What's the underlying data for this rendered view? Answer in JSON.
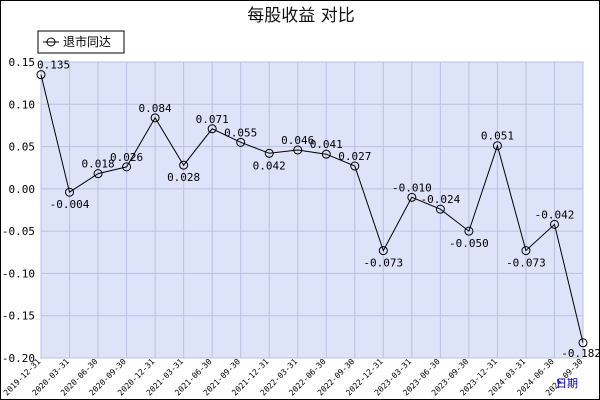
{
  "chart_data": {
    "type": "line",
    "title": "每股收益  对比",
    "xlabel": "日期",
    "ylabel": "",
    "ylim": [
      -0.2,
      0.15
    ],
    "yticks": [
      "0.15",
      "0.10",
      "0.05",
      "0.00",
      "-0.05",
      "-0.10",
      "-0.15",
      "-0.20"
    ],
    "ytick_values": [
      0.15,
      0.1,
      0.05,
      0.0,
      -0.05,
      -0.1,
      -0.15,
      -0.2
    ],
    "legend_position": "top-left",
    "grid": true,
    "categories": [
      "2019-12-31",
      "2020-03-31",
      "2020-06-30",
      "2020-09-30",
      "2020-12-31",
      "2021-03-31",
      "2021-06-30",
      "2021-09-30",
      "2021-12-31",
      "2022-03-31",
      "2022-06-30",
      "2022-09-30",
      "2022-12-31",
      "2023-03-31",
      "2023-06-30",
      "2023-09-30",
      "2023-12-31",
      "2024-03-31",
      "2024-06-30",
      "2024-09-30"
    ],
    "series": [
      {
        "name": "退市同达",
        "values": [
          0.135,
          -0.004,
          0.018,
          0.026,
          0.084,
          0.028,
          0.071,
          0.055,
          0.042,
          0.046,
          0.041,
          0.027,
          -0.073,
          -0.01,
          -0.024,
          -0.05,
          0.051,
          -0.073,
          -0.042,
          -0.182
        ],
        "labels": [
          "0.135",
          "-0.004",
          "0.018",
          "0.026",
          "0.084",
          "0.028",
          "0.071",
          "0.055",
          "0.042",
          "0.046",
          "0.041",
          "0.027",
          "-0.073",
          "-0.010",
          "-0.024",
          "-0.050",
          "0.051",
          "-0.073",
          "-0.042",
          "-0.182"
        ]
      }
    ],
    "colors": {
      "plot_background": "#dde3f8",
      "grid": "#b8c2e2",
      "line": "#000000",
      "marker": "#000000"
    }
  }
}
